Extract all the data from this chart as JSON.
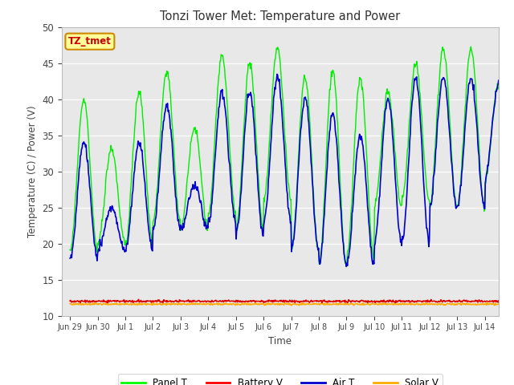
{
  "title": "Tonzi Tower Met: Temperature and Power",
  "xlabel": "Time",
  "ylabel": "Temperature (C) / Power (V)",
  "ylim": [
    10,
    50
  ],
  "yticks": [
    10,
    15,
    20,
    25,
    30,
    35,
    40,
    45,
    50
  ],
  "plot_bg_color": "#e8e8e8",
  "fig_bg_color": "#ffffff",
  "annotation_text": "TZ_tmet",
  "annotation_box_color": "#ffff99",
  "annotation_text_color": "#cc0000",
  "annotation_edge_color": "#cc8800",
  "legend_entries": [
    "Panel T",
    "Battery V",
    "Air T",
    "Solar V"
  ],
  "legend_colors": [
    "#00ff00",
    "#ff0000",
    "#0000cc",
    "#ffaa00"
  ],
  "panel_t_color": "#00ee00",
  "air_t_color": "#0000cc",
  "battery_v_color": "#dd0000",
  "solar_v_color": "#ffaa00",
  "tick_labels": [
    "Jun 29",
    "Jun 30",
    "Jul 1",
    "Jul 2",
    "Jul 3",
    "Jul 4",
    "Jul 5",
    "Jul 6",
    "Jul 7",
    "Jul 8",
    "Jul 9",
    "Jul 10",
    "Jul 11",
    "Jul 12",
    "Jul 13",
    "Jul 14"
  ],
  "tick_positions": [
    0,
    1,
    2,
    3,
    4,
    5,
    6,
    7,
    8,
    9,
    10,
    11,
    12,
    13,
    14,
    15
  ],
  "panel_peaks": [
    40,
    33,
    41,
    44,
    36,
    46,
    45,
    47,
    43,
    44,
    43,
    41,
    45,
    47,
    47,
    42
  ],
  "panel_mins": [
    19,
    20,
    20,
    23,
    22,
    24,
    22,
    26,
    19,
    17,
    18,
    25,
    26,
    25,
    25,
    29
  ],
  "air_peaks": [
    34,
    25,
    34,
    39,
    28,
    41,
    41,
    43,
    40,
    38,
    35,
    40,
    43,
    43,
    43,
    42
  ],
  "air_mins": [
    18,
    19,
    19,
    22,
    22,
    23,
    21,
    23,
    19,
    17,
    17,
    20,
    20,
    25,
    25,
    29
  ]
}
